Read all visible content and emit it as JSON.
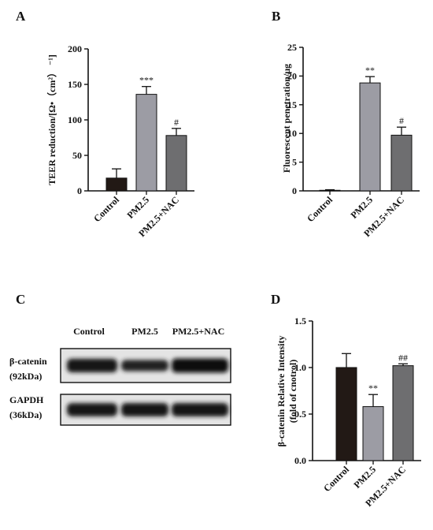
{
  "panels": [
    {
      "letter": "A",
      "type": "bar",
      "ylabel": "TEER reduction/[Ω•（cm²） ⁻¹]",
      "categories": [
        "Control",
        "PM2.5",
        "PM2.5+NAC"
      ],
      "values": [
        18,
        136,
        78
      ],
      "errors": [
        13,
        11,
        10
      ],
      "annotations": [
        "",
        "***",
        "#"
      ],
      "ylim": [
        0,
        200
      ],
      "yticks": [
        "0",
        "50",
        "100",
        "150",
        "200"
      ],
      "colors": [
        "#221915",
        "#9c9ca4",
        "#6e6e70"
      ]
    },
    {
      "letter": "B",
      "type": "bar",
      "ylabel": "Fluorescent penetration/μg",
      "categories": [
        "Control",
        "PM2.5",
        "PM2.5+NAC"
      ],
      "values": [
        0.1,
        18.8,
        9.7
      ],
      "errors": [
        0.1,
        1.1,
        1.4
      ],
      "annotations": [
        "",
        "**",
        "#"
      ],
      "ylim": [
        0,
        25
      ],
      "yticks": [
        "0",
        "5",
        "10",
        "15",
        "20",
        "25"
      ],
      "colors": [
        "#221915",
        "#9c9ca4",
        "#6e6e70"
      ]
    },
    {
      "letter": "D",
      "type": "bar",
      "ylabel": "β-catenin Relative Intensity (fold of cnotrol)",
      "categories": [
        "Control",
        "PM2.5",
        "PM2.5+NAC"
      ],
      "values": [
        1.0,
        0.58,
        1.02
      ],
      "errors": [
        0.15,
        0.13,
        0.02
      ],
      "annotations": [
        "",
        "**",
        "##"
      ],
      "ylim": [
        0,
        1.5
      ],
      "yticks": [
        "0.0",
        "0.5",
        "1.0",
        "1.5"
      ],
      "colors": [
        "#221915",
        "#9c9ca4",
        "#6e6e70"
      ]
    }
  ],
  "blot": {
    "letter": "C",
    "lane_labels": [
      "Control",
      "PM2.5",
      "PM2.5+NAC"
    ],
    "rows": [
      {
        "name": "β-catenin",
        "size": "(92kDa)",
        "intensity": [
          0.92,
          0.62,
          1.0
        ]
      },
      {
        "name": "GAPDH",
        "size": "(36kDa)",
        "intensity": [
          0.88,
          0.9,
          0.9
        ]
      }
    ]
  }
}
